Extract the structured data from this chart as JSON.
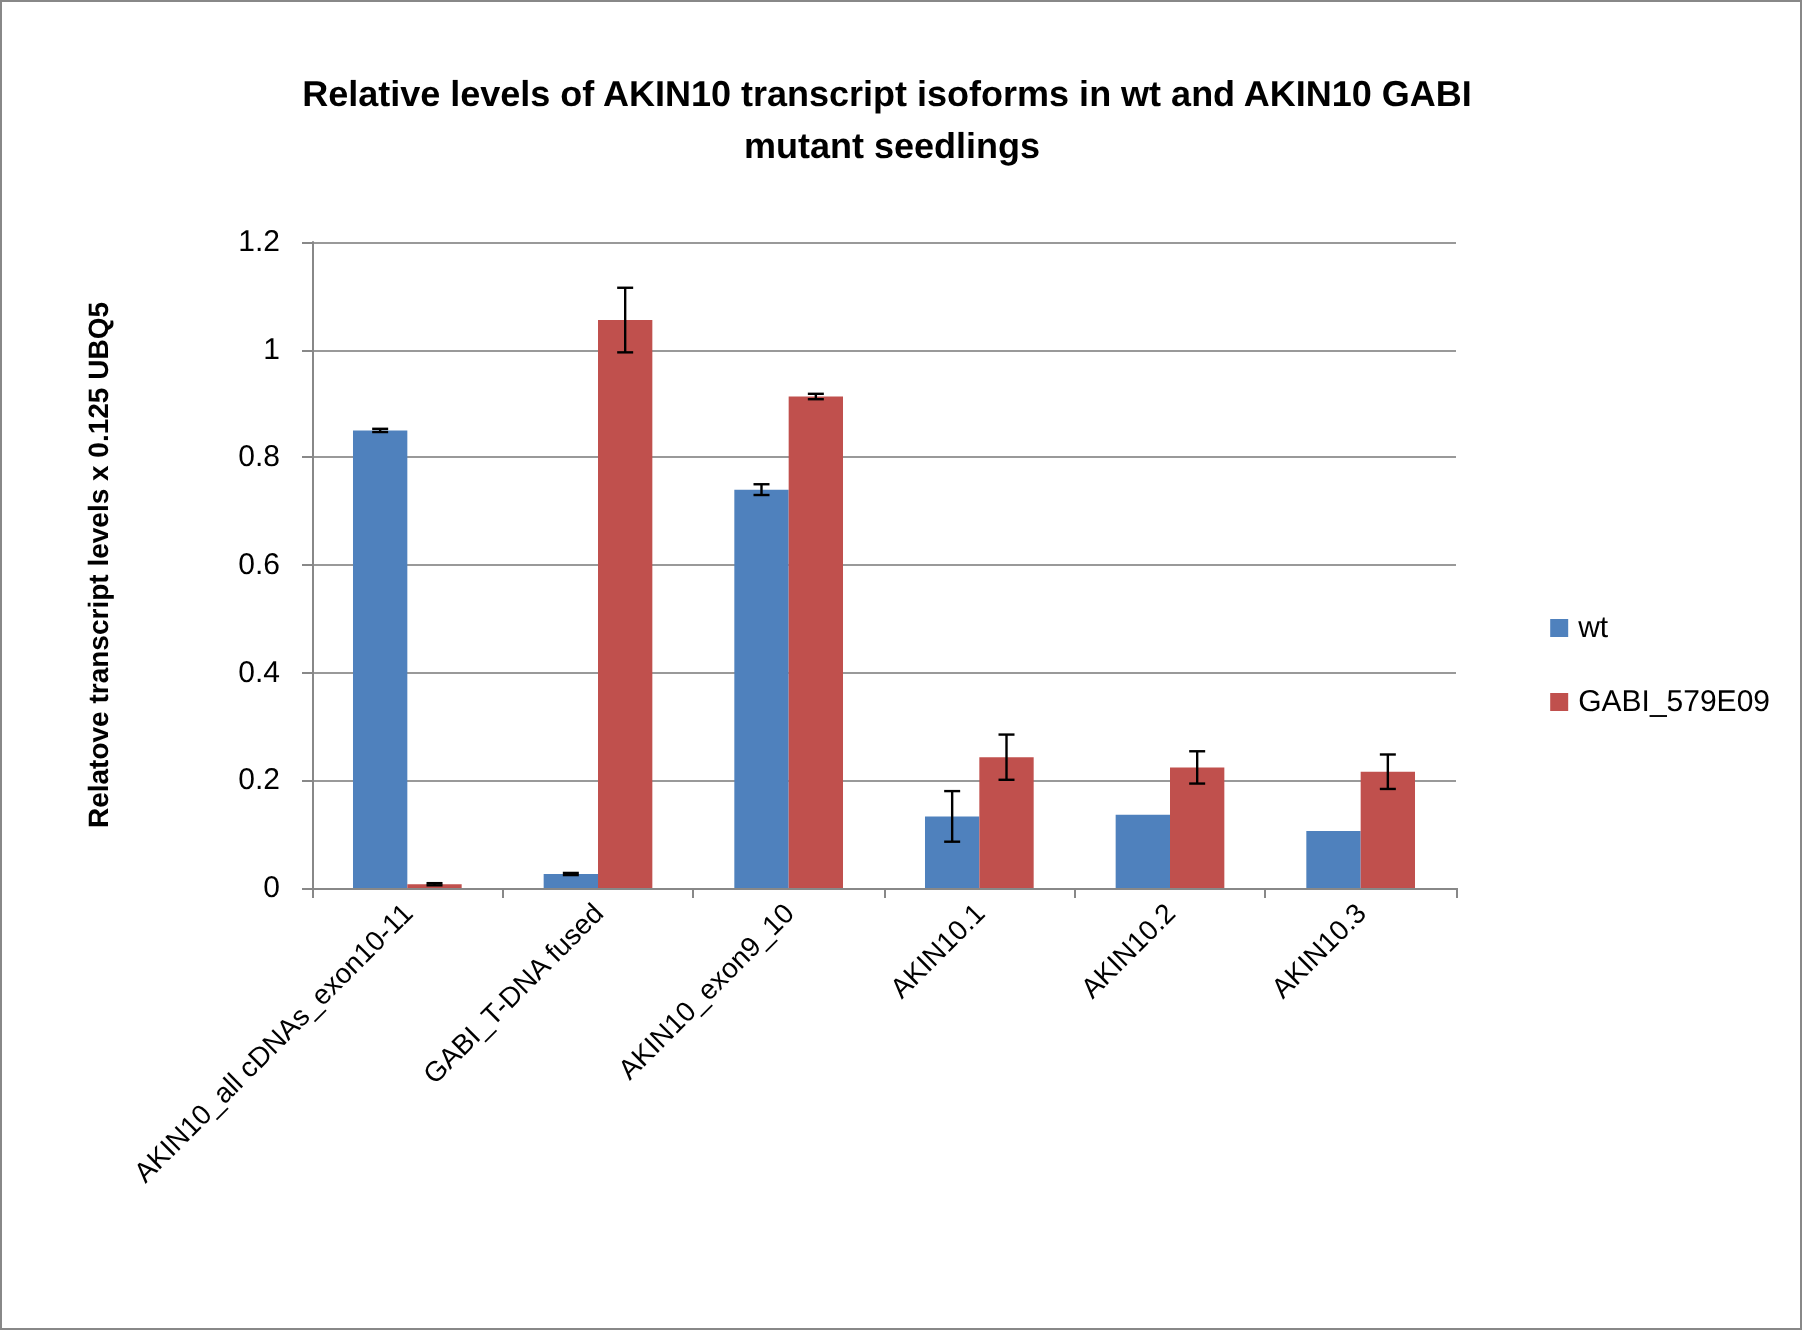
{
  "chart_data": {
    "type": "bar",
    "title": "Relative levels of AKIN10 transcript isoforms in wt and AKIN10 GABI mutant seedlings",
    "ylabel": "Relatove transcript levels x 0.125 UBQ5",
    "categories": [
      "AKIN10_all cDNAs_exon10-11",
      "GABI_T-DNA fused",
      "AKIN10_exon9_10",
      "AKIN10.1",
      "AKIN10.2",
      "AKIN10.3"
    ],
    "series": [
      {
        "name": "wt",
        "color": "#4f81bd",
        "values": [
          0.85,
          0.026,
          0.74,
          0.133,
          0.136,
          0.106
        ],
        "errors": [
          0.003,
          0.002,
          0.01,
          0.047,
          null,
          null
        ]
      },
      {
        "name": "GABI_579E09",
        "color": "#c0504d",
        "values": [
          0.007,
          1.055,
          0.913,
          0.243,
          0.224,
          0.216
        ],
        "errors": [
          0.002,
          0.06,
          0.005,
          0.042,
          0.03,
          0.032
        ]
      }
    ],
    "ylim": [
      0,
      1.2
    ],
    "yticks": [
      0,
      0.2,
      0.4,
      0.6,
      0.8,
      1,
      1.2
    ],
    "grid": "y",
    "legend": "right"
  }
}
